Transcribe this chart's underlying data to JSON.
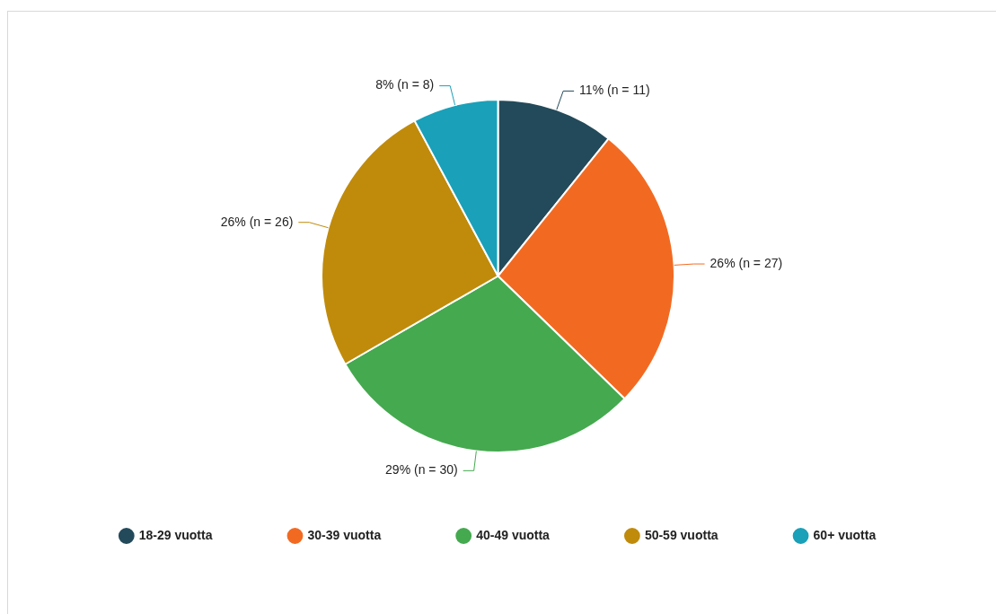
{
  "chart_data": {
    "type": "pie",
    "categories": [
      "18-29 vuotta",
      "30-39 vuotta",
      "40-49 vuotta",
      "50-59 vuotta",
      "60+ vuotta"
    ],
    "values": [
      11,
      27,
      30,
      26,
      8
    ],
    "value_labels": [
      "11% (n = 11)",
      "26% (n = 27)",
      "29% (n = 30)",
      "26% (n = 26)",
      "8% (n = 8)"
    ],
    "colors": [
      "#234a5a",
      "#f26a22",
      "#45a94f",
      "#c08b0b",
      "#1aa0b8"
    ],
    "legend": "bottom"
  }
}
